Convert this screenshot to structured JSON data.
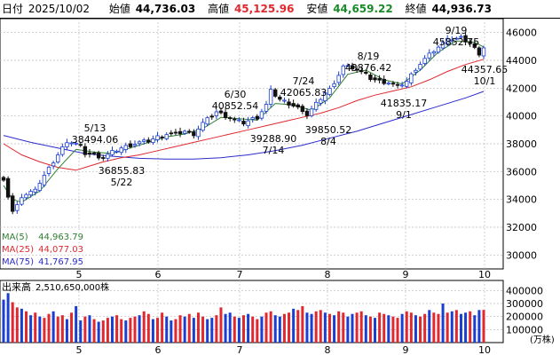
{
  "header": {
    "date_label": "日付",
    "date": "2025/10/02",
    "open_label": "始値",
    "open": "44,736.03",
    "high_label": "高値",
    "high": "45,125.96",
    "low_label": "安値",
    "low": "44,659.22",
    "close_label": "終値",
    "close": "44,936.73"
  },
  "colors": {
    "up": "#1a3fd0",
    "down": "#111111",
    "ma5": "#2e7d32",
    "ma25": "#e0282f",
    "ma75": "#2c2ccc",
    "vol_up": "#e0282f",
    "vol_down": "#1a3fd0",
    "grid": "#bbbbbb"
  },
  "chart_data": [
    {
      "type": "candlestick",
      "x_tick_labels": [
        "5",
        "6",
        "7",
        "8",
        "9",
        "10"
      ],
      "ylim": [
        29000,
        47000
      ],
      "y_ticks": [
        30000,
        32000,
        34000,
        36000,
        38000,
        40000,
        42000,
        44000,
        46000
      ],
      "y_tick_labels": [
        "30000",
        "32000",
        "34000",
        "36000",
        "38000",
        "40000",
        "42000",
        "44000",
        "46000"
      ],
      "legend": [
        {
          "name": "MA(5)",
          "value": "44,963.79",
          "color": "#2e7d32"
        },
        {
          "name": "MA(25)",
          "value": "44,077.03",
          "color": "#e0282f"
        },
        {
          "name": "MA(75)",
          "value": "41,767.95",
          "color": "#2c2ccc"
        }
      ],
      "annotations": [
        {
          "date": "5/13",
          "value": "38494.06",
          "pos": "above"
        },
        {
          "date": "5/22",
          "value": "36855.83",
          "pos": "below"
        },
        {
          "date": "6/30",
          "value": "40852.54",
          "pos": "above"
        },
        {
          "date": "7/14",
          "value": "39288.90",
          "pos": "below"
        },
        {
          "date": "7/24",
          "value": "42065.83",
          "pos": "above"
        },
        {
          "date": "8/4",
          "value": "39850.52",
          "pos": "below"
        },
        {
          "date": "8/19",
          "value": "43876.42",
          "pos": "above"
        },
        {
          "date": "9/1",
          "value": "41835.17",
          "pos": "below"
        },
        {
          "date": "9/19",
          "value": "45852.75",
          "pos": "above"
        },
        {
          "date": "10/1",
          "value": "44357.65",
          "pos": "below"
        }
      ],
      "close_path": [
        [
          0,
          35500
        ],
        [
          1,
          34200
        ],
        [
          2,
          33100
        ],
        [
          3,
          33500
        ],
        [
          4,
          34200
        ],
        [
          6,
          34500
        ],
        [
          8,
          35200
        ],
        [
          10,
          36200
        ],
        [
          12,
          37200
        ],
        [
          14,
          38200
        ],
        [
          16,
          38000
        ],
        [
          17,
          37800
        ],
        [
          18,
          37300
        ],
        [
          20,
          37200
        ],
        [
          22,
          37000
        ],
        [
          24,
          37400
        ],
        [
          26,
          37700
        ],
        [
          28,
          37900
        ],
        [
          30,
          38100
        ],
        [
          32,
          38200
        ],
        [
          34,
          38500
        ],
        [
          36,
          38700
        ],
        [
          38,
          38700
        ],
        [
          40,
          38900
        ],
        [
          42,
          38700
        ],
        [
          44,
          39500
        ],
        [
          46,
          40000
        ],
        [
          47,
          40300
        ],
        [
          49,
          40000
        ],
        [
          51,
          39700
        ],
        [
          53,
          39500
        ],
        [
          55,
          39800
        ],
        [
          56,
          39900
        ],
        [
          58,
          40800
        ],
        [
          59,
          41800
        ],
        [
          61,
          41200
        ],
        [
          63,
          40900
        ],
        [
          65,
          40600
        ],
        [
          66,
          40200
        ],
        [
          67,
          40100
        ],
        [
          69,
          40900
        ],
        [
          71,
          41700
        ],
        [
          73,
          42200
        ],
        [
          74,
          43000
        ],
        [
          75,
          43600
        ],
        [
          77,
          43500
        ],
        [
          79,
          43200
        ],
        [
          81,
          42700
        ],
        [
          83,
          42500
        ],
        [
          85,
          42400
        ],
        [
          87,
          42100
        ],
        [
          89,
          42500
        ],
        [
          91,
          43400
        ],
        [
          93,
          44100
        ],
        [
          95,
          44700
        ],
        [
          97,
          45200
        ],
        [
          98,
          45700
        ],
        [
          99,
          45500
        ],
        [
          101,
          45600
        ],
        [
          103,
          45200
        ],
        [
          105,
          44500
        ],
        [
          106,
          44937
        ]
      ],
      "ma5_path": [
        [
          0,
          35000
        ],
        [
          2,
          34000
        ],
        [
          4,
          33800
        ],
        [
          8,
          34600
        ],
        [
          12,
          36200
        ],
        [
          16,
          37600
        ],
        [
          20,
          37400
        ],
        [
          24,
          37300
        ],
        [
          28,
          37700
        ],
        [
          32,
          38100
        ],
        [
          36,
          38500
        ],
        [
          40,
          38700
        ],
        [
          44,
          39100
        ],
        [
          48,
          39900
        ],
        [
          52,
          39800
        ],
        [
          56,
          39700
        ],
        [
          60,
          40900
        ],
        [
          64,
          40800
        ],
        [
          68,
          40400
        ],
        [
          72,
          41300
        ],
        [
          76,
          43000
        ],
        [
          80,
          43300
        ],
        [
          84,
          42600
        ],
        [
          88,
          42300
        ],
        [
          92,
          43300
        ],
        [
          96,
          44600
        ],
        [
          100,
          45400
        ],
        [
          104,
          45300
        ],
        [
          106,
          44964
        ]
      ],
      "ma25_path": [
        [
          0,
          38000
        ],
        [
          4,
          37200
        ],
        [
          8,
          36700
        ],
        [
          12,
          36300
        ],
        [
          16,
          36100
        ],
        [
          18,
          36300
        ],
        [
          22,
          36700
        ],
        [
          26,
          37000
        ],
        [
          30,
          37200
        ],
        [
          34,
          37500
        ],
        [
          38,
          37800
        ],
        [
          42,
          38100
        ],
        [
          46,
          38400
        ],
        [
          50,
          38700
        ],
        [
          54,
          39000
        ],
        [
          58,
          39300
        ],
        [
          62,
          39600
        ],
        [
          66,
          39900
        ],
        [
          70,
          40200
        ],
        [
          74,
          40600
        ],
        [
          78,
          41100
        ],
        [
          82,
          41500
        ],
        [
          86,
          41800
        ],
        [
          90,
          42100
        ],
        [
          94,
          42600
        ],
        [
          98,
          43200
        ],
        [
          102,
          43700
        ],
        [
          106,
          44077
        ]
      ],
      "ma75_path": [
        [
          0,
          38600
        ],
        [
          6,
          38100
        ],
        [
          12,
          37700
        ],
        [
          18,
          37300
        ],
        [
          24,
          37100
        ],
        [
          30,
          36950
        ],
        [
          36,
          36900
        ],
        [
          42,
          36900
        ],
        [
          48,
          37000
        ],
        [
          54,
          37200
        ],
        [
          60,
          37500
        ],
        [
          66,
          37900
        ],
        [
          72,
          38400
        ],
        [
          78,
          38900
        ],
        [
          84,
          39500
        ],
        [
          90,
          40100
        ],
        [
          96,
          40700
        ],
        [
          102,
          41300
        ],
        [
          106,
          41768
        ]
      ]
    },
    {
      "type": "bar",
      "title": "出来高",
      "latest": "2,510,650,000株",
      "ylim": [
        0,
        450000
      ],
      "y_ticks": [
        100000,
        200000,
        300000,
        400000
      ],
      "y_tick_labels": [
        "100000",
        "200000",
        "300000",
        "400000"
      ],
      "unit": "(万株)",
      "x_tick_labels": [
        "5",
        "6",
        "7",
        "8",
        "9",
        "10"
      ],
      "values": [
        330000,
        380000,
        310000,
        270000,
        260000,
        240000,
        210000,
        230000,
        200000,
        190000,
        220000,
        240000,
        200000,
        210000,
        180000,
        230000,
        280000,
        170000,
        200000,
        210000,
        180000,
        160000,
        170000,
        190000,
        200000,
        210000,
        180000,
        170000,
        190000,
        200000,
        210000,
        240000,
        220000,
        180000,
        190000,
        230000,
        200000,
        170000,
        180000,
        210000,
        200000,
        220000,
        190000,
        230000,
        200000,
        180000,
        190000,
        210000,
        270000,
        220000,
        230000,
        200000,
        190000,
        210000,
        220000,
        200000,
        180000,
        200000,
        230000,
        240000,
        210000,
        200000,
        220000,
        230000,
        260000,
        250000,
        280000,
        230000,
        220000,
        240000,
        250000,
        230000,
        220000,
        210000,
        240000,
        230000,
        200000,
        220000,
        230000,
        240000,
        210000,
        200000,
        190000,
        230000,
        220000,
        210000,
        200000,
        190000,
        220000,
        240000,
        230000,
        210000,
        200000,
        220000,
        250000,
        230000,
        220000,
        300000,
        230000,
        240000,
        250000,
        220000,
        230000,
        240000,
        210000,
        250000,
        251065
      ],
      "up_flags": [
        0,
        0,
        1,
        1,
        0,
        1,
        0,
        1,
        0,
        1,
        1,
        0,
        1,
        1,
        0,
        1,
        0,
        0,
        1,
        0,
        1,
        0,
        1,
        1,
        0,
        1,
        1,
        0,
        1,
        1,
        0,
        1,
        1,
        0,
        1,
        1,
        0,
        0,
        1,
        1,
        0,
        1,
        0,
        1,
        1,
        0,
        0,
        1,
        1,
        0,
        0,
        1,
        0,
        1,
        0,
        1,
        1,
        0,
        1,
        1,
        0,
        0,
        1,
        1,
        0,
        1,
        1,
        0,
        0,
        1,
        1,
        0,
        1,
        0,
        1,
        1,
        0,
        0,
        1,
        1,
        0,
        1,
        0,
        1,
        1,
        0,
        1,
        1,
        0,
        1,
        1,
        0,
        1,
        1,
        0,
        1,
        1,
        0,
        1,
        0,
        1,
        0,
        0,
        1,
        0,
        0,
        1
      ]
    }
  ]
}
